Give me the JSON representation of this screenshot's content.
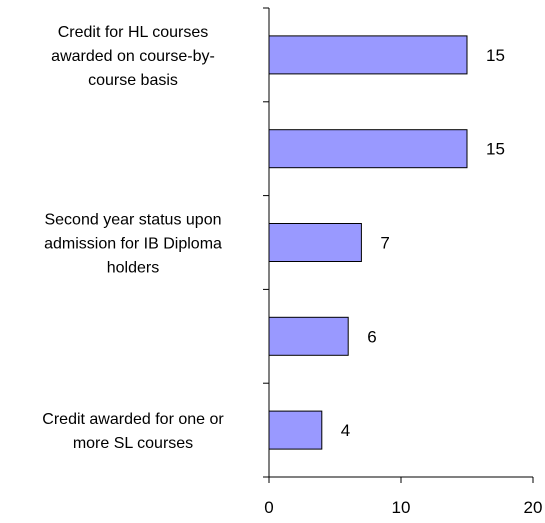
{
  "chart_data": {
    "type": "bar",
    "orientation": "horizontal",
    "categories": [
      [
        "Credit for HL courses",
        "awarded on course-by-",
        "course basis"
      ],
      [],
      [
        "Second year status upon",
        "admission for IB Diploma",
        "holders"
      ],
      [],
      [
        "Credit awarded for one or",
        "more SL courses"
      ]
    ],
    "values": [
      15,
      15,
      7,
      6,
      4
    ],
    "data_labels": [
      "15",
      "15",
      "7",
      "6",
      "4"
    ],
    "xlim": [
      0,
      20
    ],
    "xticks": [
      0,
      10,
      20
    ],
    "xtick_labels": [
      "0",
      "10",
      "20"
    ],
    "title": "",
    "xlabel": "",
    "ylabel": "",
    "grid": false,
    "legend": "none",
    "colors": {
      "bar_fill": "#9999ff",
      "bar_stroke": "#000000"
    }
  }
}
